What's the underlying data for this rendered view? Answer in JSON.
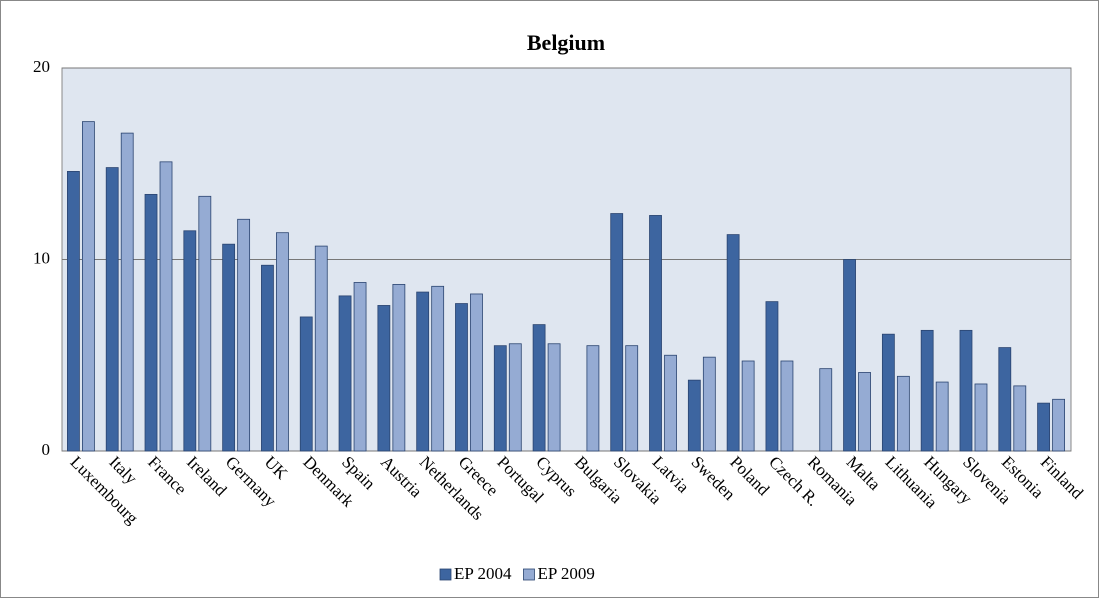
{
  "chart_data": {
    "type": "bar",
    "title": "Belgium",
    "categories": [
      "Luxembourg",
      "Italy",
      "France",
      "Ireland",
      "Germany",
      "UK",
      "Denmark",
      "Spain",
      "Austria",
      "Netherlands",
      "Greece",
      "Portugal",
      "Cyprus",
      "Bulgaria",
      "Slovakia",
      "Latvia",
      "Sweden",
      "Poland",
      "Czech R.",
      "Romania",
      "Malta",
      "Lithuania",
      "Hungary",
      "Slovenia",
      "Estonia",
      "Finland"
    ],
    "series": [
      {
        "name": "EP 2004",
        "color": "#3d65a0",
        "values": [
          14.6,
          14.8,
          13.4,
          11.5,
          10.8,
          9.7,
          7.0,
          8.1,
          7.6,
          8.3,
          7.7,
          5.5,
          6.6,
          null,
          12.4,
          12.3,
          3.7,
          11.3,
          7.8,
          null,
          10.0,
          6.1,
          6.3,
          6.3,
          5.4,
          2.5
        ]
      },
      {
        "name": "EP 2009",
        "color": "#95abd3",
        "values": [
          17.2,
          16.6,
          15.1,
          13.3,
          12.1,
          11.4,
          10.7,
          8.8,
          8.7,
          8.6,
          8.2,
          5.6,
          5.6,
          5.5,
          5.5,
          5.0,
          4.9,
          4.7,
          4.7,
          4.3,
          4.1,
          3.9,
          3.6,
          3.5,
          3.4,
          2.7
        ]
      }
    ],
    "ylim": [
      0,
      20
    ],
    "yticks": [
      0,
      10,
      20
    ],
    "grid": true,
    "legend": "bottom"
  }
}
